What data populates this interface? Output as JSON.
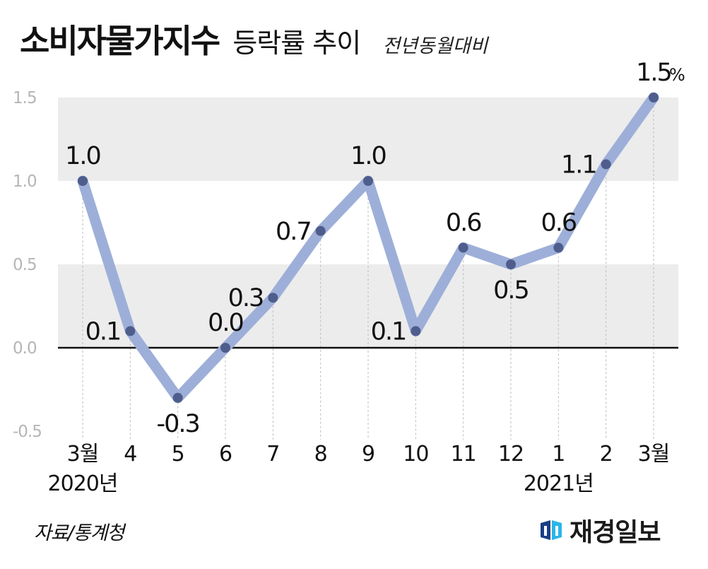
{
  "header": {
    "title": "소비자물가지수",
    "subtitle": "등락률 추이",
    "note": "전년동월대비"
  },
  "footer": {
    "source": "자료/통계청",
    "brand": "재경일보"
  },
  "colors": {
    "line": "#9dafd8",
    "point": "#4e5d8c",
    "band": "#ececec",
    "grid_dash": "#bdbdbd",
    "zero_line": "#111111",
    "y_tick": "#b5b5b5",
    "brand_dark": "#1b3f86",
    "brand_light": "#2bb5e8"
  },
  "chart_data": {
    "type": "line",
    "x": [
      "3월",
      "4",
      "5",
      "6",
      "7",
      "8",
      "9",
      "10",
      "11",
      "12",
      "1",
      "2",
      "3월"
    ],
    "year_labels": [
      {
        "index": 0,
        "text": "2020년"
      },
      {
        "index": 10,
        "text": "2021년"
      }
    ],
    "series": [
      {
        "values": [
          1.0,
          0.1,
          -0.3,
          0.0,
          0.3,
          0.7,
          1.0,
          0.1,
          0.6,
          0.5,
          0.6,
          1.1,
          1.5
        ],
        "data_labels": [
          "1.0",
          "0.1",
          "-0.3",
          "0.0",
          "0.3",
          "0.7",
          "1.0",
          "0.1",
          "0.6",
          "0.5",
          "0.6",
          "1.1",
          "1.5"
        ]
      }
    ],
    "last_label_unit": "%",
    "y_ticks": [
      "1.5",
      "1.0",
      "0.5",
      "0.0",
      "-0.5"
    ],
    "y_tick_values": [
      1.5,
      1.0,
      0.5,
      0.0,
      -0.5
    ],
    "ylim": [
      -0.5,
      1.5
    ],
    "grid": true,
    "shaded_bands": [
      [
        1.0,
        1.5
      ],
      [
        0.0,
        0.5
      ]
    ]
  }
}
